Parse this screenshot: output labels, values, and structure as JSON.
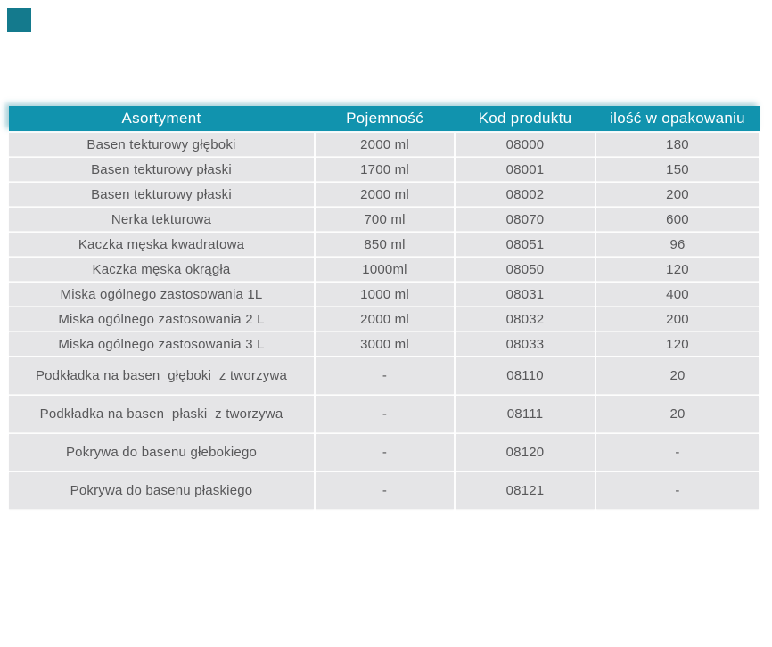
{
  "page": {
    "background_color": "#ffffff"
  },
  "logo": {
    "name": "teal-corner-square",
    "color": "#147a8d"
  },
  "table": {
    "header_bg_color": "#1193ae",
    "header_text_color": "#ffffff",
    "row_bg_color": "#e5e5e7",
    "row_text_color": "#58585a",
    "columns": [
      "Asortyment",
      "Pojemność",
      "Kod produktu",
      "ilość w opakowaniu"
    ],
    "rows": [
      {
        "tall": false,
        "cells": [
          "Basen tekturowy głęboki",
          "2000 ml",
          "08000",
          "180"
        ]
      },
      {
        "tall": false,
        "cells": [
          "Basen tekturowy płaski",
          "1700 ml",
          "08001",
          "150"
        ]
      },
      {
        "tall": false,
        "cells": [
          "Basen tekturowy płaski",
          "2000 ml",
          "08002",
          "200"
        ]
      },
      {
        "tall": false,
        "cells": [
          "Nerka tekturowa",
          "700 ml",
          "08070",
          "600"
        ]
      },
      {
        "tall": false,
        "cells": [
          "Kaczka męska kwadratowa",
          "850 ml",
          "08051",
          "96"
        ]
      },
      {
        "tall": false,
        "cells": [
          "Kaczka męska okrągła",
          "1000ml",
          "08050",
          "120"
        ]
      },
      {
        "tall": false,
        "cells": [
          "Miska ogólnego zastosowania 1L",
          "1000 ml",
          "08031",
          "400"
        ]
      },
      {
        "tall": false,
        "cells": [
          "Miska ogólnego zastosowania 2 L",
          "2000 ml",
          "08032",
          "200"
        ]
      },
      {
        "tall": false,
        "cells": [
          "Miska ogólnego zastosowania 3 L",
          "3000 ml",
          "08033",
          "120"
        ]
      },
      {
        "tall": true,
        "cells": [
          "Podkładka na basen  głęboki  z tworzywa",
          "-",
          "08110",
          "20"
        ]
      },
      {
        "tall": true,
        "cells": [
          "Podkładka na basen  płaski  z tworzywa",
          "-",
          "08111",
          "20"
        ]
      },
      {
        "tall": true,
        "cells": [
          "Pokrywa do basenu głebokiego",
          "-",
          "08120",
          "-"
        ]
      },
      {
        "tall": true,
        "cells": [
          "Pokrywa do basenu płaskiego",
          "-",
          "08121",
          "-"
        ]
      }
    ]
  }
}
